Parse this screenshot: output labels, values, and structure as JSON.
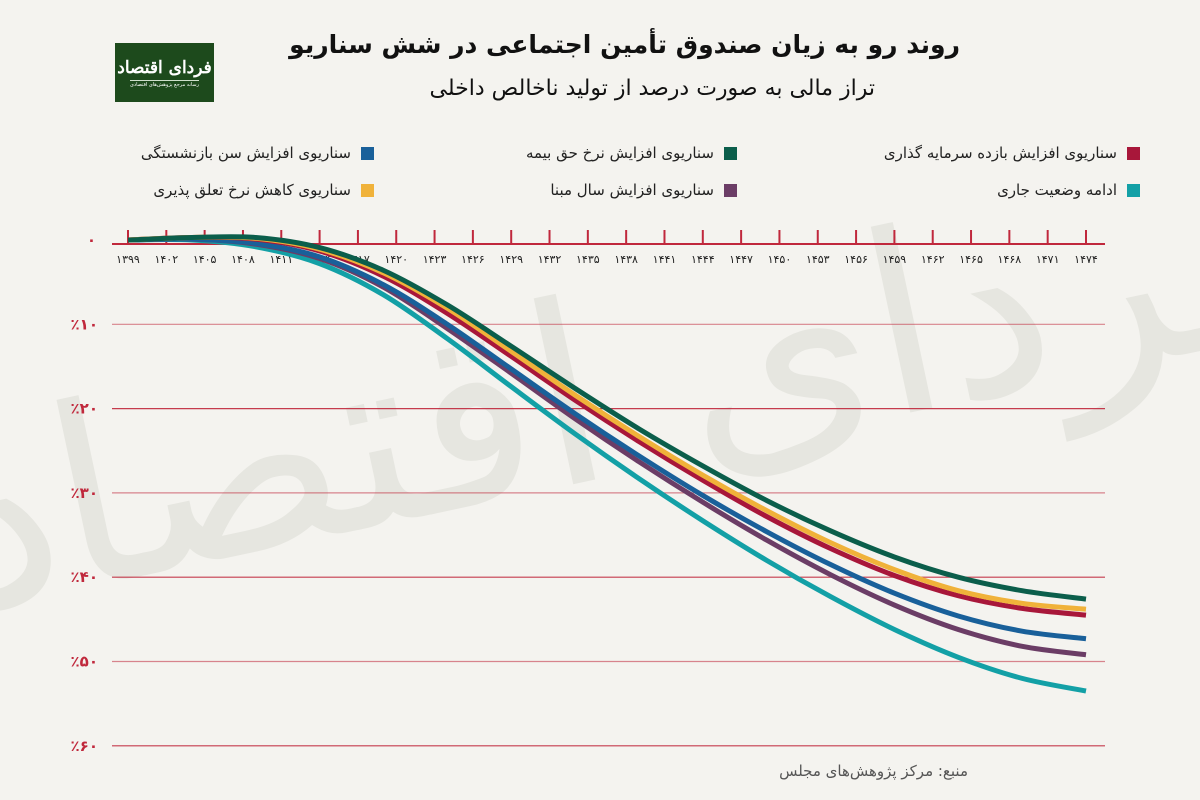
{
  "header": {
    "title": "روند رو به زیان صندوق تأمین اجتماعی در شش سناریو",
    "subtitle": "تراز مالی به صورت درصد از تولید ناخالص داخلی",
    "logo_text": "فردای اقتصاد",
    "logo_tagline": "رسانه مرجع پژوهش‌های اقتصادی"
  },
  "legend": [
    {
      "label": "سناریوی افزایش بازده سرمایه گذاری",
      "color": "#a8173a"
    },
    {
      "label": "سناریوی افزایش نرخ حق بیمه",
      "color": "#0b5e4b"
    },
    {
      "label": "سناریوی افزایش سن بازنشستگی",
      "color": "#19609a"
    },
    {
      "label": "ادامه وضعیت جاری",
      "color": "#13a0a6"
    },
    {
      "label": "سناریوی افزایش سال مبنا",
      "color": "#6b3d66"
    },
    {
      "label": "سناریوی کاهش نرخ تعلق پذیری",
      "color": "#f0b23a"
    }
  ],
  "source": "منبع: مرکز پژوهش‌های مجلس",
  "colors": {
    "axis": "#c0283c",
    "grid": "#c0283c",
    "background": "#f4f3ef"
  },
  "chart_data": {
    "type": "line",
    "title": "روند رو به زیان صندوق تأمین اجتماعی در شش سناریو",
    "subtitle": "تراز مالی به صورت درصد از تولید ناخالص داخلی",
    "xlabel": "",
    "ylabel": "درصد از تولید ناخالص داخلی",
    "x_tick_labels": [
      "۱۳۹۹",
      "۱۴۰۲",
      "۱۴۰۵",
      "۱۴۰۸",
      "۱۴۱۱",
      "۱۴۱۴",
      "۱۴۱۷",
      "۱۴۲۰",
      "۱۴۲۳",
      "۱۴۲۶",
      "۱۴۲۹",
      "۱۴۳۲",
      "۱۴۳۵",
      "۱۴۳۸",
      "۱۴۴۱",
      "۱۴۴۴",
      "۱۴۴۷",
      "۱۴۵۰",
      "۱۴۵۳",
      "۱۴۵۶",
      "۱۴۵۹",
      "۱۴۶۲",
      "۱۴۶۵",
      "۱۴۶۸",
      "۱۴۷۱",
      "۱۴۷۴"
    ],
    "y_tick_labels": [
      "۰",
      "٪۱۰",
      "٪۲۰",
      "٪۳۰",
      "٪۴۰",
      "٪۵۰",
      "٪۶۰"
    ],
    "ylim": [
      -60,
      0
    ],
    "x": [
      1399,
      1404,
      1409,
      1414,
      1419,
      1424,
      1429,
      1434,
      1439,
      1444,
      1449,
      1454,
      1459,
      1464,
      1469,
      1474
    ],
    "series": [
      {
        "name": "سناریوی افزایش بازده سرمایه گذاری",
        "color": "#a8173a",
        "values": [
          0,
          0.3,
          0.1,
          -1.3,
          -4.3,
          -8.7,
          -13.8,
          -19.0,
          -23.9,
          -28.5,
          -32.8,
          -36.6,
          -39.8,
          -42.2,
          -43.7,
          -44.5
        ]
      },
      {
        "name": "سناریوی افزایش نرخ حق بیمه",
        "color": "#0b5e4b",
        "values": [
          0,
          0.3,
          0.3,
          -0.9,
          -3.6,
          -7.7,
          -12.6,
          -17.6,
          -22.4,
          -26.8,
          -30.9,
          -34.5,
          -37.6,
          -40.0,
          -41.6,
          -42.6
        ]
      },
      {
        "name": "سناریوی افزایش سن بازنشستگی",
        "color": "#19609a",
        "values": [
          0,
          0.1,
          -0.4,
          -2.0,
          -5.3,
          -10.0,
          -15.3,
          -20.6,
          -25.6,
          -30.3,
          -34.6,
          -38.5,
          -41.9,
          -44.6,
          -46.4,
          -47.3
        ]
      },
      {
        "name": "ادامه وضعیت جاری",
        "color": "#13a0a6",
        "values": [
          0,
          0.0,
          -0.8,
          -2.8,
          -6.5,
          -11.7,
          -17.4,
          -23.0,
          -28.3,
          -33.3,
          -38.0,
          -42.3,
          -46.2,
          -49.5,
          -52.0,
          -53.5
        ]
      },
      {
        "name": "سناریوی افزایش سال مبنا",
        "color": "#6b3d66",
        "values": [
          0,
          0.1,
          -0.5,
          -2.2,
          -5.6,
          -10.5,
          -15.8,
          -21.2,
          -26.3,
          -31.1,
          -35.6,
          -39.7,
          -43.3,
          -46.2,
          -48.2,
          -49.2
        ]
      },
      {
        "name": "سناریوی کاهش نرخ تعلق پذیری",
        "color": "#f0b23a",
        "values": [
          0,
          0.3,
          0.2,
          -1.1,
          -3.9,
          -8.1,
          -13.2,
          -18.4,
          -23.3,
          -27.9,
          -32.1,
          -35.9,
          -39.1,
          -41.6,
          -43.1,
          -43.8
        ]
      }
    ],
    "grid": true,
    "legend_position": "top"
  }
}
